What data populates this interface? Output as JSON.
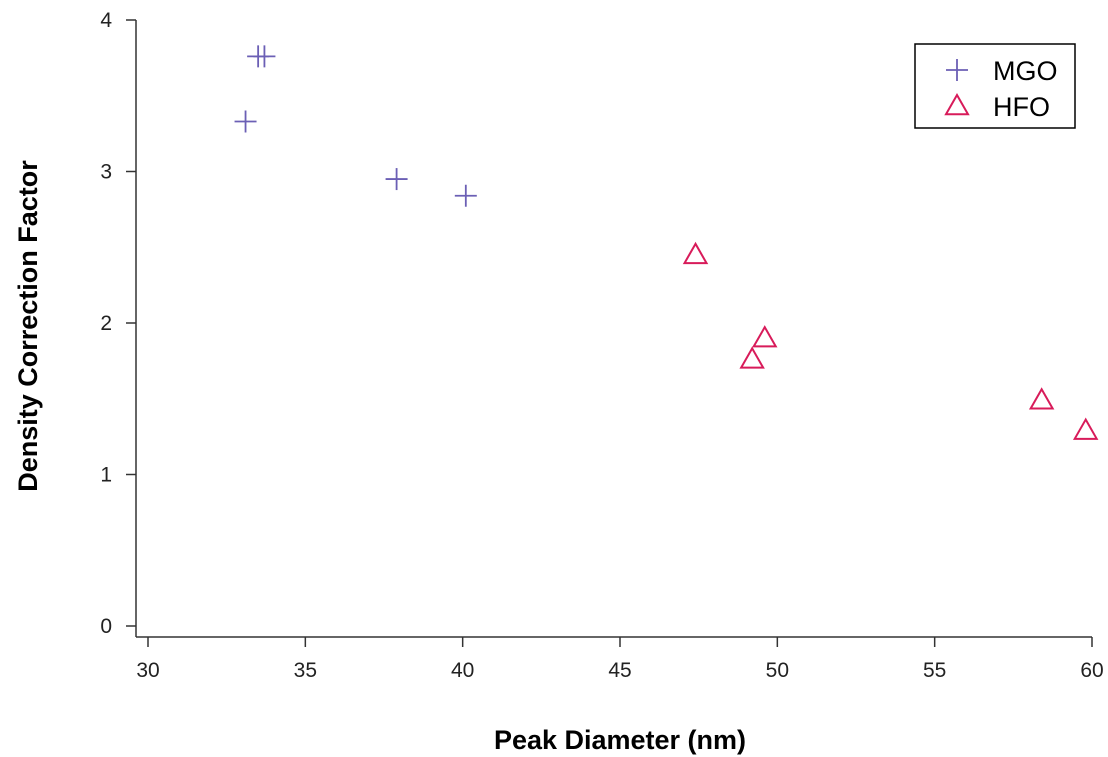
{
  "chart_data": {
    "type": "scatter",
    "title": "",
    "xlabel": "Peak Diameter (nm)",
    "ylabel": "Density Correction Factor",
    "xlim": [
      30,
      60
    ],
    "ylim": [
      0,
      4
    ],
    "xticks": [
      30,
      35,
      40,
      45,
      50,
      55,
      60
    ],
    "yticks": [
      0,
      1,
      2,
      3,
      4
    ],
    "grid": false,
    "legend_position": "top-right",
    "series": [
      {
        "name": "MGO",
        "marker": "plus",
        "color": "#6b5fb5",
        "points": [
          {
            "x": 33.5,
            "y": 3.76
          },
          {
            "x": 33.7,
            "y": 3.76
          },
          {
            "x": 33.1,
            "y": 3.33
          },
          {
            "x": 37.9,
            "y": 2.95
          },
          {
            "x": 40.1,
            "y": 2.84
          }
        ]
      },
      {
        "name": "HFO",
        "marker": "triangle",
        "color": "#d81b5a",
        "points": [
          {
            "x": 47.4,
            "y": 2.45
          },
          {
            "x": 49.6,
            "y": 1.9
          },
          {
            "x": 49.2,
            "y": 1.76
          },
          {
            "x": 58.4,
            "y": 1.49
          },
          {
            "x": 59.8,
            "y": 1.29
          }
        ]
      }
    ]
  }
}
